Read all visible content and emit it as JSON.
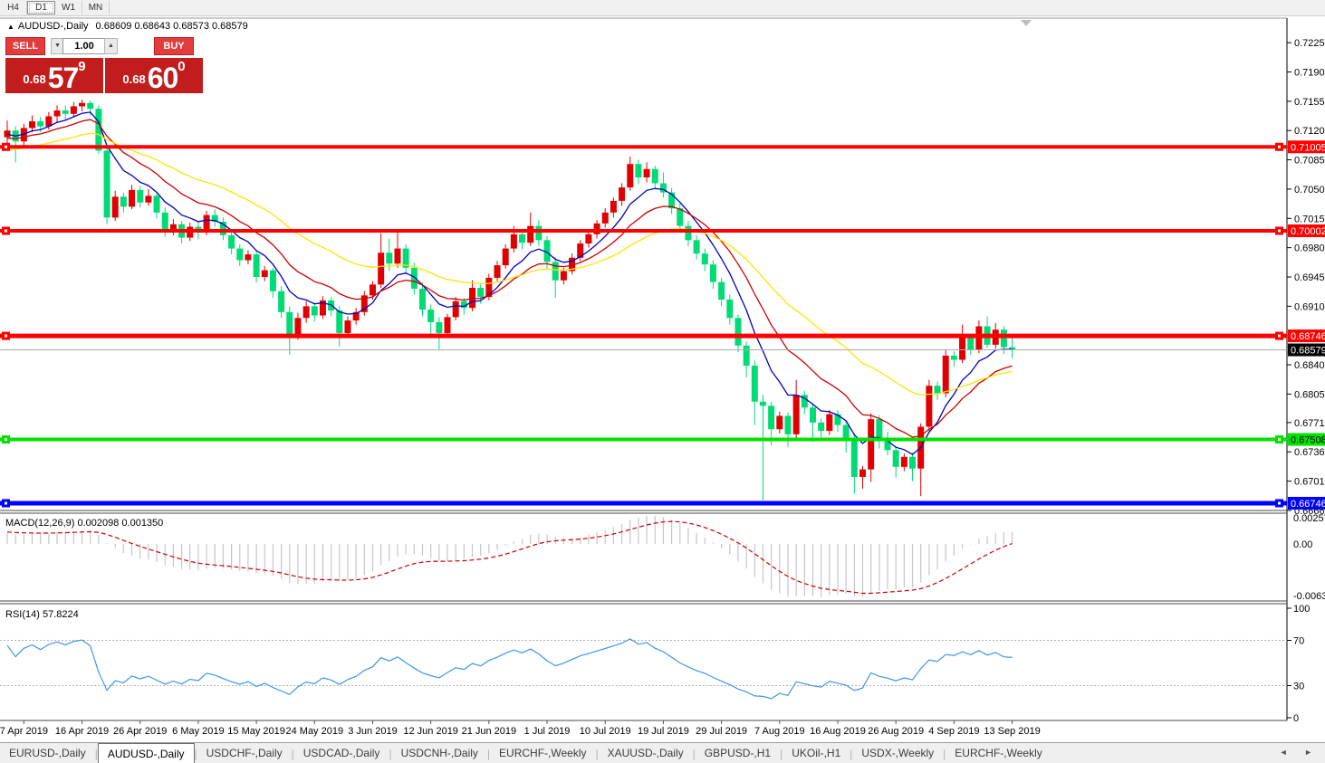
{
  "window": {
    "toolbar": {
      "timeframes": [
        "H4",
        "D1",
        "W1",
        "MN"
      ],
      "active_timeframe": "D1"
    },
    "tabs": {
      "items": [
        "EURUSD-,Daily",
        "AUDUSD-,Daily",
        "USDCHF-,Daily",
        "USDCAD-,Daily",
        "USDCNH-,Daily",
        "EURCHF-,Weekly",
        "XAUUSD-,Daily",
        "GBPUSD-,H1",
        "UKOil-,H1",
        "USDX-,Weekly",
        "EURCHF-,Weekly"
      ],
      "active_index": 1,
      "scroll_left_arrow": "◄",
      "scroll_right_arrow": "►"
    }
  },
  "chart_header": {
    "expand_icon": "▲",
    "symbol_text": "AUDUSD-,Daily",
    "ohlc_text": "0.68609 0.68643 0.68573 0.68579"
  },
  "trade_panel": {
    "sell_label": "SELL",
    "buy_label": "BUY",
    "volume": "1.00",
    "spin_down": "▼",
    "spin_up": "▲",
    "sell_price": {
      "small": "0.68",
      "big": "57",
      "sup": "9"
    },
    "buy_price": {
      "small": "0.68",
      "big": "60",
      "sup": "0"
    }
  },
  "chart_data": {
    "type": "candlestick",
    "symbol": "AUDUSD-",
    "timeframe": "Daily",
    "title": "AUDUSD-,Daily 0.68609 0.68643 0.68573 0.68579",
    "bull_color": "#e10000",
    "bear_color": "#00db76",
    "price_range": {
      "max": 0.7236,
      "min": 0.6667
    },
    "price_axis_ticks": [
      0.7225,
      0.719,
      0.7155,
      0.712,
      0.7085,
      0.705,
      0.7015,
      0.698,
      0.6945,
      0.691,
      0.684,
      0.6805,
      0.6771,
      0.6736,
      0.6701,
      0.6666
    ],
    "current_price": {
      "value": 0.68579,
      "label": "0.68579",
      "line_color": "#aaaaaa",
      "box_color": "#000000",
      "text_color": "#ffffff"
    },
    "levels": [
      {
        "price": 0.71005,
        "label": "0.71005",
        "color": "#ff0000",
        "text": "#ffffff",
        "width": 4
      },
      {
        "price": 0.70002,
        "label": "0.70002",
        "color": "#ff0000",
        "text": "#ffffff",
        "width": 4
      },
      {
        "price": 0.68746,
        "label": "0.68746",
        "color": "#ff0000",
        "text": "#ffffff",
        "width": 5
      },
      {
        "price": 0.67508,
        "label": "0.67508",
        "color": "#00e100",
        "text": "#000000",
        "width": 4
      },
      {
        "price": 0.66746,
        "label": "0.66746",
        "color": "#0000ff",
        "text": "#ffffff",
        "width": 5
      }
    ],
    "dates": [
      "7 Apr 2019",
      "16 Apr 2019",
      "26 Apr 2019",
      "6 May 2019",
      "15 May 2019",
      "24 May 2019",
      "3 Jun 2019",
      "12 Jun 2019",
      "21 Jun 2019",
      "1 Jul 2019",
      "10 Jul 2019",
      "19 Jul 2019",
      "29 Jul 2019",
      "7 Aug 2019",
      "16 Aug 2019",
      "26 Aug 2019",
      "4 Sep 2019",
      "13 Sep 2019"
    ],
    "ma_lines": [
      {
        "period": 7,
        "color": "#0000c0"
      },
      {
        "period": 14,
        "color": "#cc0000"
      },
      {
        "period": 30,
        "color": "#ffe400"
      }
    ],
    "macd": {
      "label": "MACD(12,26,9)",
      "values_text": "0.002098 0.001350",
      "fast": 12,
      "slow": 26,
      "signal": 9,
      "axis_max": "0.002574",
      "axis_zero": "0.00",
      "axis_min": "-0.006326",
      "hist_color": "#c6c6c6",
      "signal_color": "#cc0000"
    },
    "rsi": {
      "label": "RSI(14) 57.8224",
      "period": 14,
      "levels": [
        70,
        30
      ],
      "axis": [
        "100",
        "70",
        "30",
        "0"
      ],
      "color": "#3b97e8"
    },
    "warmup_closes": [
      0.7031,
      0.7026,
      0.7038,
      0.7033,
      0.7045,
      0.704,
      0.7052,
      0.7047,
      0.7058,
      0.7053,
      0.7064,
      0.7059,
      0.707,
      0.7066,
      0.7076,
      0.7072,
      0.7082,
      0.7078,
      0.7088,
      0.7084,
      0.7093,
      0.7089,
      0.7098,
      0.7094,
      0.7102,
      0.7098,
      0.7106,
      0.7102,
      0.711,
      0.7106,
      0.7112,
      0.7108,
      0.7114,
      0.711,
      0.7116,
      0.7112,
      0.7117,
      0.7113,
      0.7118,
      0.7115
    ],
    "candles": [
      [
        0.7112,
        0.7132,
        0.7105,
        0.712
      ],
      [
        0.712,
        0.7125,
        0.7082,
        0.7107
      ],
      [
        0.7107,
        0.7128,
        0.71,
        0.7123
      ],
      [
        0.7123,
        0.7138,
        0.7118,
        0.7131
      ],
      [
        0.7131,
        0.7136,
        0.7118,
        0.7125
      ],
      [
        0.7125,
        0.7142,
        0.7121,
        0.7137
      ],
      [
        0.7137,
        0.715,
        0.713,
        0.7144
      ],
      [
        0.7144,
        0.715,
        0.7133,
        0.714
      ],
      [
        0.714,
        0.7154,
        0.7136,
        0.7149
      ],
      [
        0.7149,
        0.7157,
        0.7143,
        0.7153
      ],
      [
        0.7153,
        0.7156,
        0.7138,
        0.7146
      ],
      [
        0.7146,
        0.715,
        0.7092,
        0.7096
      ],
      [
        0.7096,
        0.7102,
        0.7008,
        0.7016
      ],
      [
        0.7016,
        0.7048,
        0.7012,
        0.7041
      ],
      [
        0.7041,
        0.7046,
        0.7022,
        0.7029
      ],
      [
        0.7029,
        0.7055,
        0.7026,
        0.7049
      ],
      [
        0.7049,
        0.7054,
        0.7028,
        0.7034
      ],
      [
        0.7034,
        0.705,
        0.703,
        0.7042
      ],
      [
        0.7042,
        0.7045,
        0.7015,
        0.7022
      ],
      [
        0.7022,
        0.7028,
        0.6993,
        0.7
      ],
      [
        0.7,
        0.7014,
        0.6995,
        0.7008
      ],
      [
        0.7008,
        0.7012,
        0.6985,
        0.6992
      ],
      [
        0.6992,
        0.701,
        0.6988,
        0.7005
      ],
      [
        0.7005,
        0.7011,
        0.699,
        0.6998
      ],
      [
        0.6998,
        0.7024,
        0.6995,
        0.7019
      ],
      [
        0.7019,
        0.7026,
        0.7005,
        0.7011
      ],
      [
        0.7011,
        0.7016,
        0.6989,
        0.6995
      ],
      [
        0.6995,
        0.7001,
        0.6972,
        0.6979
      ],
      [
        0.6979,
        0.6984,
        0.6958,
        0.6965
      ],
      [
        0.6965,
        0.6977,
        0.696,
        0.6972
      ],
      [
        0.6972,
        0.6976,
        0.6938,
        0.6945
      ],
      [
        0.6945,
        0.6958,
        0.694,
        0.6953
      ],
      [
        0.6953,
        0.6956,
        0.692,
        0.6928
      ],
      [
        0.6928,
        0.6934,
        0.6896,
        0.6903
      ],
      [
        0.6903,
        0.691,
        0.6852,
        0.6875
      ],
      [
        0.6875,
        0.6902,
        0.687,
        0.6896
      ],
      [
        0.6896,
        0.6916,
        0.689,
        0.691
      ],
      [
        0.691,
        0.6914,
        0.6892,
        0.6899
      ],
      [
        0.6899,
        0.6922,
        0.6895,
        0.6917
      ],
      [
        0.6917,
        0.6921,
        0.6898,
        0.6905
      ],
      [
        0.6905,
        0.691,
        0.6862,
        0.6878
      ],
      [
        0.6878,
        0.6898,
        0.6874,
        0.6893
      ],
      [
        0.6893,
        0.6908,
        0.6888,
        0.6903
      ],
      [
        0.6903,
        0.6928,
        0.6899,
        0.6923
      ],
      [
        0.6923,
        0.694,
        0.6918,
        0.6936
      ],
      [
        0.6936,
        0.6997,
        0.6932,
        0.6974
      ],
      [
        0.6974,
        0.6991,
        0.6952,
        0.6961
      ],
      [
        0.6961,
        0.7002,
        0.6956,
        0.6979
      ],
      [
        0.6979,
        0.6984,
        0.6948,
        0.6956
      ],
      [
        0.6956,
        0.6962,
        0.6924,
        0.6931
      ],
      [
        0.6931,
        0.6938,
        0.6898,
        0.6906
      ],
      [
        0.6906,
        0.6912,
        0.6872,
        0.6891
      ],
      [
        0.6891,
        0.6897,
        0.6858,
        0.6878
      ],
      [
        0.6878,
        0.6901,
        0.6874,
        0.6897
      ],
      [
        0.6897,
        0.6921,
        0.6893,
        0.6916
      ],
      [
        0.6916,
        0.692,
        0.69,
        0.6908
      ],
      [
        0.6908,
        0.6941,
        0.6904,
        0.6932
      ],
      [
        0.6932,
        0.6936,
        0.6913,
        0.6921
      ],
      [
        0.6921,
        0.6949,
        0.6917,
        0.6944
      ],
      [
        0.6944,
        0.6964,
        0.694,
        0.6959
      ],
      [
        0.6959,
        0.6984,
        0.6955,
        0.6979
      ],
      [
        0.6979,
        0.7006,
        0.6974,
        0.6996
      ],
      [
        0.6996,
        0.7,
        0.6978,
        0.6986
      ],
      [
        0.6986,
        0.7022,
        0.6982,
        0.7006
      ],
      [
        0.7006,
        0.7013,
        0.6982,
        0.6989
      ],
      [
        0.6989,
        0.6994,
        0.6955,
        0.6963
      ],
      [
        0.6963,
        0.6969,
        0.692,
        0.6941
      ],
      [
        0.6941,
        0.6956,
        0.6936,
        0.6952
      ],
      [
        0.6952,
        0.6973,
        0.6948,
        0.6968
      ],
      [
        0.6968,
        0.6989,
        0.6964,
        0.6985
      ],
      [
        0.6985,
        0.7001,
        0.698,
        0.6996
      ],
      [
        0.6996,
        0.7013,
        0.6991,
        0.7009
      ],
      [
        0.7009,
        0.7027,
        0.7004,
        0.7022
      ],
      [
        0.7022,
        0.704,
        0.7016,
        0.7036
      ],
      [
        0.7036,
        0.7057,
        0.703,
        0.7052
      ],
      [
        0.7052,
        0.7089,
        0.7048,
        0.708
      ],
      [
        0.708,
        0.7085,
        0.7056,
        0.7064
      ],
      [
        0.7064,
        0.7082,
        0.7058,
        0.7074
      ],
      [
        0.7074,
        0.7078,
        0.705,
        0.7057
      ],
      [
        0.7057,
        0.707,
        0.704,
        0.7046
      ],
      [
        0.7046,
        0.7051,
        0.702,
        0.7027
      ],
      [
        0.7027,
        0.7033,
        0.6999,
        0.7006
      ],
      [
        0.7006,
        0.7012,
        0.6982,
        0.6989
      ],
      [
        0.6989,
        0.6995,
        0.6966,
        0.6973
      ],
      [
        0.6973,
        0.6979,
        0.6952,
        0.696
      ],
      [
        0.696,
        0.6965,
        0.6931,
        0.6939
      ],
      [
        0.6939,
        0.6944,
        0.691,
        0.6918
      ],
      [
        0.6918,
        0.6924,
        0.6888,
        0.6896
      ],
      [
        0.6896,
        0.69,
        0.6855,
        0.6863
      ],
      [
        0.6863,
        0.6868,
        0.6825,
        0.6839
      ],
      [
        0.6839,
        0.6845,
        0.6768,
        0.6796
      ],
      [
        0.6796,
        0.6804,
        0.6678,
        0.6791
      ],
      [
        0.6791,
        0.6796,
        0.6744,
        0.6763
      ],
      [
        0.6763,
        0.6784,
        0.6758,
        0.6779
      ],
      [
        0.6779,
        0.6783,
        0.6742,
        0.6757
      ],
      [
        0.6757,
        0.6822,
        0.6752,
        0.6804
      ],
      [
        0.6804,
        0.6809,
        0.6781,
        0.6789
      ],
      [
        0.6789,
        0.6794,
        0.6748,
        0.6771
      ],
      [
        0.6771,
        0.6776,
        0.6752,
        0.6761
      ],
      [
        0.6761,
        0.6786,
        0.6756,
        0.6781
      ],
      [
        0.6781,
        0.6786,
        0.676,
        0.6768
      ],
      [
        0.6768,
        0.6773,
        0.6735,
        0.6753
      ],
      [
        0.6753,
        0.6758,
        0.6686,
        0.6706
      ],
      [
        0.6706,
        0.6719,
        0.6692,
        0.6715
      ],
      [
        0.6715,
        0.6782,
        0.67,
        0.6775
      ],
      [
        0.6775,
        0.678,
        0.674,
        0.6752
      ],
      [
        0.6752,
        0.676,
        0.6732,
        0.6738
      ],
      [
        0.6738,
        0.6743,
        0.6705,
        0.6718
      ],
      [
        0.6718,
        0.6734,
        0.6713,
        0.673
      ],
      [
        0.673,
        0.6735,
        0.6701,
        0.6716
      ],
      [
        0.6716,
        0.677,
        0.6683,
        0.6766
      ],
      [
        0.6766,
        0.6822,
        0.6761,
        0.6815
      ],
      [
        0.6815,
        0.682,
        0.6798,
        0.6806
      ],
      [
        0.6806,
        0.6858,
        0.6801,
        0.6851
      ],
      [
        0.6851,
        0.6856,
        0.6838,
        0.6846
      ],
      [
        0.6846,
        0.6888,
        0.6842,
        0.6872
      ],
      [
        0.6872,
        0.6877,
        0.6852,
        0.6858
      ],
      [
        0.6858,
        0.6893,
        0.6854,
        0.6886
      ],
      [
        0.6886,
        0.6898,
        0.686,
        0.6864
      ],
      [
        0.6864,
        0.689,
        0.6859,
        0.6882
      ],
      [
        0.6882,
        0.6886,
        0.6853,
        0.6861
      ],
      [
        0.6861,
        0.6872,
        0.6848,
        0.68579
      ]
    ]
  }
}
